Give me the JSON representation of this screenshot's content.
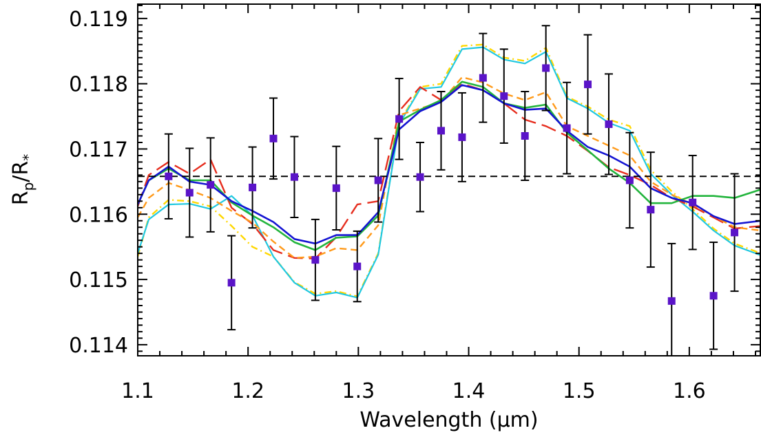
{
  "chart_data": {
    "type": "line",
    "xlabel": "Wavelength (μm)",
    "ylabel": {
      "base": "R",
      "sub1": "p",
      "mid": "/R",
      "sub2": "*"
    },
    "xlim": [
      1.1,
      1.665
    ],
    "ylim": [
      0.11383,
      0.11922
    ],
    "xticks": [
      1.1,
      1.2,
      1.3,
      1.4,
      1.5,
      1.6
    ],
    "xtick_labels": [
      "1.1",
      "1.2",
      "1.3",
      "1.4",
      "1.5",
      "1.6"
    ],
    "yticks": [
      0.114,
      0.115,
      0.116,
      0.117,
      0.118,
      0.119
    ],
    "ytick_labels": [
      "0.114",
      "0.115",
      "0.116",
      "0.117",
      "0.118",
      "0.119"
    ],
    "grid": false,
    "reference_line": {
      "y": 0.11658,
      "style": "dashed",
      "color": "#000000"
    },
    "observations": {
      "color": "#5a14c8",
      "x": [
        1.128,
        1.147,
        1.166,
        1.185,
        1.204,
        1.223,
        1.242,
        1.261,
        1.28,
        1.299,
        1.318,
        1.337,
        1.356,
        1.375,
        1.394,
        1.413,
        1.432,
        1.451,
        1.47,
        1.489,
        1.508,
        1.527,
        1.546,
        1.565,
        1.584,
        1.603,
        1.622,
        1.641
      ],
      "y": [
        0.11658,
        0.11633,
        0.11645,
        0.11495,
        0.11641,
        0.11716,
        0.11657,
        0.1153,
        0.1164,
        0.1152,
        0.11652,
        0.11746,
        0.11657,
        0.11728,
        0.11718,
        0.11809,
        0.11781,
        0.1172,
        0.11824,
        0.11732,
        0.11799,
        0.11738,
        0.11652,
        0.11607,
        0.11467,
        0.11618,
        0.11475,
        0.11572
      ],
      "yerr": [
        0.00065,
        0.00068,
        0.00072,
        0.00072,
        0.00062,
        0.00062,
        0.00062,
        0.00062,
        0.00064,
        0.00054,
        0.00064,
        0.00062,
        0.00053,
        0.0006,
        0.00068,
        0.00068,
        0.00072,
        0.00068,
        0.00065,
        0.0007,
        0.00076,
        0.00077,
        0.00073,
        0.00088,
        0.00088,
        0.00072,
        0.00082,
        0.0009
      ]
    },
    "series": [
      {
        "color": "#ffd700",
        "dash": "10 5 2 5",
        "width": 2.4,
        "x": [
          1.1,
          1.11,
          1.128,
          1.147,
          1.166,
          1.185,
          1.204,
          1.223,
          1.242,
          1.261,
          1.28,
          1.299,
          1.318,
          1.337,
          1.356,
          1.375,
          1.394,
          1.413,
          1.432,
          1.451,
          1.47,
          1.489,
          1.508,
          1.527,
          1.546,
          1.565,
          1.584,
          1.603,
          1.622,
          1.641,
          1.665
        ],
        "y": [
          0.11535,
          0.11595,
          0.11622,
          0.1162,
          0.11612,
          0.11582,
          0.1155,
          0.11535,
          0.11496,
          0.11478,
          0.11482,
          0.11474,
          0.1154,
          0.1174,
          0.11795,
          0.118,
          0.11858,
          0.1186,
          0.1184,
          0.11835,
          0.11855,
          0.1178,
          0.11765,
          0.11745,
          0.11735,
          0.11668,
          0.11635,
          0.11608,
          0.11578,
          0.11555,
          0.1154
        ]
      },
      {
        "color": "#20c8e0",
        "dash": "",
        "width": 2.2,
        "x": [
          1.1,
          1.11,
          1.128,
          1.147,
          1.166,
          1.185,
          1.204,
          1.223,
          1.242,
          1.261,
          1.28,
          1.299,
          1.318,
          1.337,
          1.356,
          1.375,
          1.394,
          1.413,
          1.432,
          1.451,
          1.47,
          1.489,
          1.508,
          1.527,
          1.546,
          1.565,
          1.584,
          1.603,
          1.622,
          1.641,
          1.665
        ],
        "y": [
          0.1154,
          0.11592,
          0.11615,
          0.11616,
          0.11608,
          0.11628,
          0.11598,
          0.11535,
          0.11495,
          0.11475,
          0.1148,
          0.11472,
          0.11538,
          0.11738,
          0.11792,
          0.11795,
          0.11853,
          0.11856,
          0.11837,
          0.11831,
          0.11849,
          0.11778,
          0.11762,
          0.1174,
          0.11728,
          0.11662,
          0.1163,
          0.11604,
          0.11575,
          0.11552,
          0.11537
        ]
      },
      {
        "color": "#e62d1e",
        "dash": "22 9",
        "width": 2.4,
        "x": [
          1.1,
          1.11,
          1.128,
          1.147,
          1.166,
          1.185,
          1.204,
          1.223,
          1.242,
          1.261,
          1.28,
          1.299,
          1.318,
          1.337,
          1.356,
          1.375,
          1.394,
          1.413,
          1.432,
          1.451,
          1.47,
          1.489,
          1.508,
          1.527,
          1.546,
          1.565,
          1.584,
          1.603,
          1.622,
          1.641,
          1.665
        ],
        "y": [
          0.11612,
          0.1166,
          0.1168,
          0.11662,
          0.11684,
          0.1161,
          0.11585,
          0.11545,
          0.11533,
          0.11532,
          0.11565,
          0.11615,
          0.1162,
          0.11758,
          0.11795,
          0.11775,
          0.118,
          0.1179,
          0.1177,
          0.11745,
          0.11735,
          0.1172,
          0.11697,
          0.11672,
          0.1166,
          0.11645,
          0.11625,
          0.11612,
          0.11595,
          0.11578,
          0.11582
        ]
      },
      {
        "color": "#ff9a1a",
        "dash": "10 6",
        "width": 2.4,
        "x": [
          1.1,
          1.11,
          1.128,
          1.147,
          1.166,
          1.185,
          1.204,
          1.223,
          1.242,
          1.261,
          1.28,
          1.299,
          1.318,
          1.337,
          1.356,
          1.375,
          1.394,
          1.413,
          1.432,
          1.451,
          1.47,
          1.489,
          1.508,
          1.527,
          1.546,
          1.565,
          1.584,
          1.603,
          1.622,
          1.641,
          1.665
        ],
        "y": [
          0.11595,
          0.11625,
          0.11648,
          0.11637,
          0.11625,
          0.11605,
          0.11587,
          0.11558,
          0.11533,
          0.11535,
          0.11548,
          0.11545,
          0.11583,
          0.11752,
          0.11762,
          0.11772,
          0.1181,
          0.11802,
          0.11785,
          0.11775,
          0.11787,
          0.11735,
          0.1172,
          0.11705,
          0.1169,
          0.1165,
          0.1163,
          0.11615,
          0.11597,
          0.1158,
          0.11575
        ]
      },
      {
        "color": "#22b43c",
        "dash": "",
        "width": 2.6,
        "x": [
          1.1,
          1.11,
          1.128,
          1.147,
          1.166,
          1.185,
          1.204,
          1.223,
          1.242,
          1.261,
          1.28,
          1.299,
          1.318,
          1.337,
          1.356,
          1.375,
          1.394,
          1.413,
          1.432,
          1.451,
          1.47,
          1.489,
          1.508,
          1.527,
          1.546,
          1.565,
          1.584,
          1.603,
          1.622,
          1.641,
          1.665
        ],
        "y": [
          0.11615,
          0.11652,
          0.1167,
          0.11652,
          0.11652,
          0.11618,
          0.11598,
          0.1158,
          0.11557,
          0.11545,
          0.11564,
          0.11566,
          0.11598,
          0.11742,
          0.1176,
          0.11775,
          0.11803,
          0.11795,
          0.1177,
          0.11763,
          0.11768,
          0.11725,
          0.11698,
          0.1167,
          0.11648,
          0.11617,
          0.11617,
          0.11628,
          0.11628,
          0.11625,
          0.11638
        ]
      },
      {
        "color": "#1414d2",
        "dash": "",
        "width": 2.6,
        "x": [
          1.1,
          1.11,
          1.128,
          1.147,
          1.166,
          1.185,
          1.204,
          1.223,
          1.242,
          1.261,
          1.28,
          1.299,
          1.318,
          1.337,
          1.356,
          1.375,
          1.394,
          1.413,
          1.432,
          1.451,
          1.47,
          1.489,
          1.508,
          1.527,
          1.546,
          1.565,
          1.584,
          1.603,
          1.622,
          1.641,
          1.665
        ],
        "y": [
          0.11615,
          0.11652,
          0.11673,
          0.1165,
          0.11645,
          0.1162,
          0.11605,
          0.11588,
          0.11562,
          0.11555,
          0.11568,
          0.11568,
          0.11603,
          0.1173,
          0.11758,
          0.11772,
          0.11798,
          0.1179,
          0.1177,
          0.1176,
          0.11762,
          0.11728,
          0.11703,
          0.1169,
          0.11673,
          0.1164,
          0.11625,
          0.11617,
          0.11597,
          0.11585,
          0.1159
        ]
      }
    ]
  }
}
